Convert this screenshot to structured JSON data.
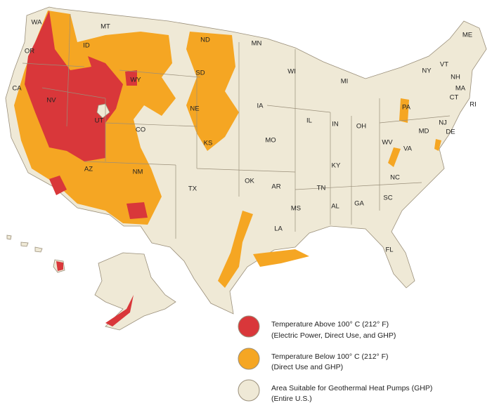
{
  "states": [
    "WA",
    "MT",
    "ND",
    "MN",
    "ME",
    "OR",
    "ID",
    "SD",
    "WI",
    "MI",
    "NY",
    "VT",
    "NH",
    "MA",
    "CT",
    "RI",
    "CA",
    "NV",
    "WY",
    "NE",
    "IA",
    "IL",
    "IN",
    "OH",
    "PA",
    "NJ",
    "MD",
    "DE",
    "UT",
    "CO",
    "KS",
    "MO",
    "WV",
    "VA",
    "KY",
    "AZ",
    "NM",
    "OK",
    "AR",
    "TN",
    "NC",
    "SC",
    "TX",
    "MS",
    "AL",
    "GA",
    "LA",
    "FL"
  ],
  "legend": {
    "items": [
      {
        "label": "Temperature Above 100° C (212° F)",
        "detail": "(Electric Power, Direct Use, and GHP)",
        "color": "#d9373a"
      },
      {
        "label": "Temperature Below 100° C (212° F)",
        "detail": "(Direct Use and GHP)",
        "color": "#f5a623"
      },
      {
        "label": "Area Suitable for Geothermal Heat Pumps (GHP)",
        "detail": "(Entire U.S.)",
        "color": "#efe9d6"
      }
    ]
  }
}
